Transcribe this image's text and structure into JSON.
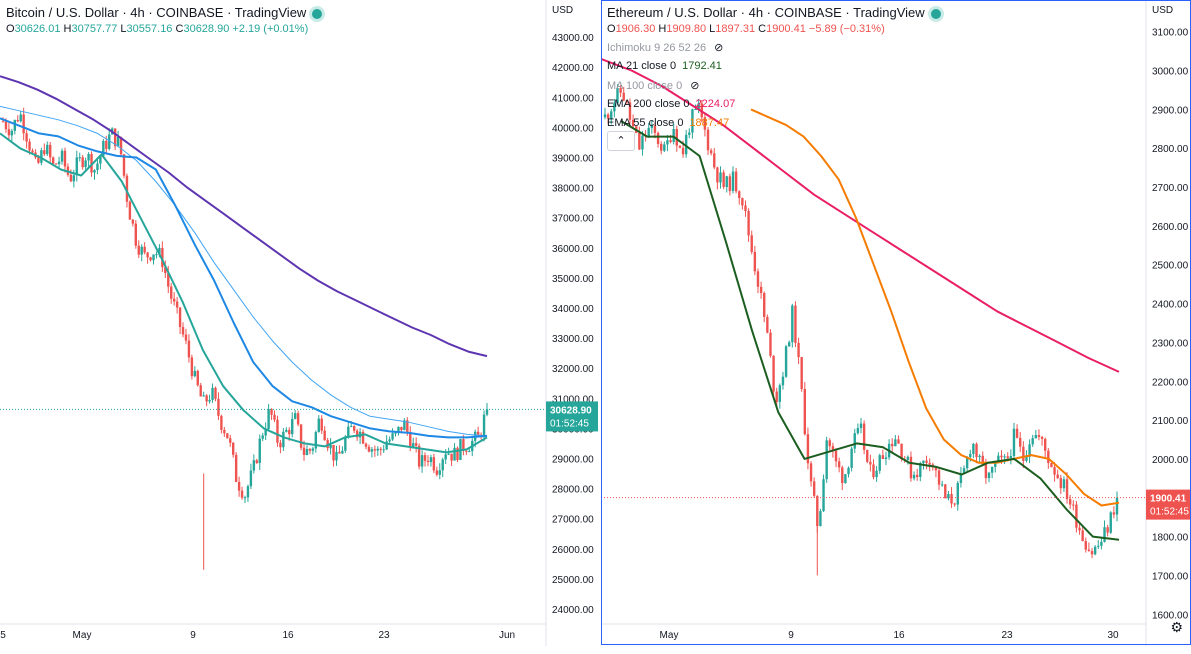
{
  "btc": {
    "title": "Bitcoin / U.S. Dollar · 4h · COINBASE · TradingView",
    "ohlc": {
      "o_label": "O",
      "o": "30626.01",
      "h_label": "H",
      "h": "30757.77",
      "l_label": "L",
      "l": "30557.16",
      "c_label": "C",
      "c": "30628.90",
      "chg": "+2.19 (+0.01%)"
    },
    "axis_unit": "USD",
    "price_tag": "30628.90",
    "countdown": "01:52:45"
  },
  "eth": {
    "title": "Ethereum / U.S. Dollar · 4h · COINBASE · TradingView",
    "ohlc": {
      "o_label": "O",
      "o": "1906.30",
      "h_label": "H",
      "h": "1909.80",
      "l_label": "L",
      "l": "1897.31",
      "c_label": "C",
      "c": "1900.41",
      "chg": "−5.89 (−0.31%)"
    },
    "axis_unit": "USD",
    "price_tag": "1900.41",
    "countdown": "01:52:45",
    "indicators": [
      {
        "label": "Ichimoku 9 26 52 26",
        "value": "",
        "hidden": true,
        "color": "#9598a1"
      },
      {
        "label": "MA 21 close 0",
        "value": "1792.41",
        "hidden": false,
        "color": "#1b5e20"
      },
      {
        "label": "MA 100 close 0",
        "value": "",
        "hidden": true,
        "color": "#9598a1"
      },
      {
        "label": "EMA 200 close 0",
        "value": "2224.07",
        "hidden": false,
        "color": "#e91e63"
      },
      {
        "label": "EMA 55 close 0",
        "value": "1887.47",
        "hidden": false,
        "color": "#f57c00"
      }
    ]
  },
  "chart_data": [
    {
      "type": "candlestick",
      "symbol": "Bitcoin / U.S. Dollar",
      "interval": "4h",
      "ylim": [
        23500,
        43500
      ],
      "y_ticks": [
        "24000.00",
        "25000.00",
        "26000.00",
        "27000.00",
        "28000.00",
        "29000.00",
        "30000.00",
        "31000.00",
        "32000.00",
        "33000.00",
        "34000.00",
        "35000.00",
        "36000.00",
        "37000.00",
        "38000.00",
        "39000.00",
        "40000.00",
        "41000.00",
        "42000.00",
        "43000.00"
      ],
      "x_ticks": [
        "5",
        "May",
        "9",
        "16",
        "23",
        "Jun"
      ],
      "close_path": [
        40200,
        39900,
        40500,
        39600,
        38600,
        39400,
        38700,
        39000,
        38300,
        38800,
        39100,
        38600,
        39300,
        39800,
        39400,
        37400,
        36200,
        35700,
        35900,
        35700,
        34500,
        33600,
        32700,
        31600,
        30800,
        31200,
        30300,
        29700,
        28300,
        27800,
        28600,
        29800,
        30600,
        29500,
        29900,
        30300,
        29200,
        29300,
        30400,
        29500,
        28900,
        29600,
        30100,
        29800,
        29400,
        29200,
        29600,
        29700,
        30200,
        29500,
        28800,
        29100,
        28700,
        29300,
        29100,
        29400,
        29500,
        29700,
        30628.9
      ],
      "series": [
        {
          "name": "EMA 200",
          "color": "#5e35b1",
          "values": [
            41700,
            41500,
            41250,
            40950,
            40600,
            40250,
            39850,
            39400,
            38950,
            38500,
            38000,
            37550,
            37100,
            36650,
            36200,
            35750,
            35300,
            34900,
            34550,
            34250,
            33950,
            33650,
            33350,
            33100,
            32800,
            32550,
            32400
          ]
        },
        {
          "name": "EMA 100",
          "color": "#42a5f5",
          "values": [
            40700,
            40550,
            40400,
            40250,
            40050,
            39800,
            39400,
            38900,
            38200,
            37400,
            36500,
            35500,
            34600,
            33700,
            32900,
            32200,
            31600,
            31100,
            30700,
            30400,
            30300,
            30200,
            30050,
            29900,
            29800,
            29750
          ]
        },
        {
          "name": "EMA 55",
          "color": "#1e88e5",
          "values": [
            40300,
            40050,
            39800,
            39700,
            39400,
            39200,
            39050,
            39000,
            38600,
            37400,
            36100,
            34900,
            33500,
            32200,
            31400,
            30900,
            30700,
            30400,
            30200,
            30000,
            29900,
            29850,
            29750,
            29700,
            29700,
            29750
          ]
        },
        {
          "name": "MA 21",
          "color": "#26a69a",
          "values": [
            39800,
            39300,
            39000,
            38600,
            38400,
            39100,
            38200,
            36900,
            35600,
            34200,
            32600,
            31400,
            30600,
            30000,
            29700,
            29500,
            29400,
            29700,
            29800,
            29500,
            29400,
            29300,
            29200,
            29300,
            29700
          ]
        }
      ]
    },
    {
      "type": "candlestick",
      "symbol": "Ethereum / U.S. Dollar",
      "interval": "4h",
      "ylim": [
        1575,
        3125
      ],
      "y_ticks": [
        "1600.00",
        "1700.00",
        "1800.00",
        "1900.00",
        "2000.00",
        "2100.00",
        "2200.00",
        "2300.00",
        "2400.00",
        "2500.00",
        "2600.00",
        "2700.00",
        "2800.00",
        "2900.00",
        "3000.00",
        "3100.00"
      ],
      "x_ticks": [
        "May",
        "9",
        "16",
        "23",
        "30"
      ],
      "close_path": [
        2880,
        2920,
        2950,
        2870,
        2800,
        2850,
        2830,
        2790,
        2860,
        2780,
        2870,
        2900,
        2820,
        2740,
        2700,
        2720,
        2680,
        2560,
        2450,
        2320,
        2150,
        2240,
        2380,
        2180,
        1950,
        1820,
        2060,
        1990,
        1950,
        2040,
        2070,
        1960,
        1990,
        2030,
        2060,
        2010,
        1960,
        1980,
        2010,
        1950,
        1890,
        1900,
        1960,
        2050,
        1980,
        1950,
        1990,
        1990,
        2060,
        2000,
        2070,
        2050,
        2000,
        1960,
        1920,
        1860,
        1800,
        1760,
        1780,
        1830,
        1900.41
      ],
      "series": [
        {
          "name": "EMA 200",
          "color": "#e91e63",
          "values": [
            3030,
            3000,
            2960,
            2910,
            2860,
            2800,
            2740,
            2680,
            2630,
            2580,
            2530,
            2480,
            2430,
            2380,
            2340,
            2300,
            2260,
            2224
          ]
        },
        {
          "name": "EMA 55",
          "color": "#f57c00",
          "values": [
            2900,
            2880,
            2860,
            2830,
            2780,
            2720,
            2620,
            2500,
            2380,
            2250,
            2130,
            2050,
            2010,
            1990,
            1990,
            2000,
            2010,
            2000,
            1960,
            1910,
            1880,
            1887
          ]
        },
        {
          "name": "MA 21",
          "color": "#1b5e20",
          "values": [
            2870,
            2830,
            2830,
            2780,
            2560,
            2330,
            2120,
            2000,
            2020,
            2040,
            2030,
            1990,
            1980,
            1960,
            1990,
            2000,
            1950,
            1870,
            1800,
            1792
          ]
        }
      ]
    }
  ]
}
